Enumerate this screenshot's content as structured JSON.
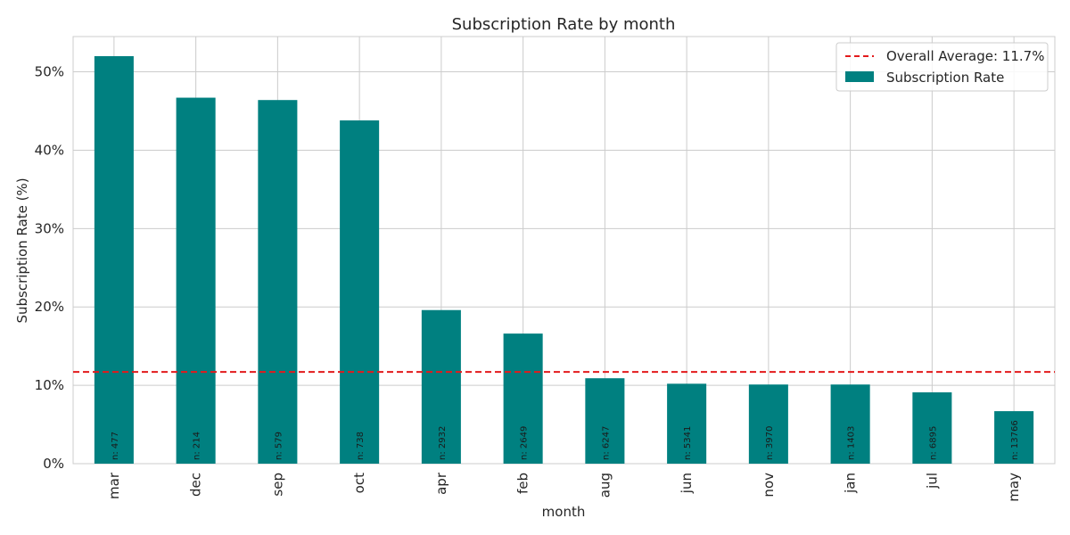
{
  "chart_data": {
    "type": "bar",
    "title": "Subscription Rate by month",
    "xlabel": "month",
    "ylabel": "Subscription Rate (%)",
    "categories": [
      "mar",
      "dec",
      "sep",
      "oct",
      "apr",
      "feb",
      "aug",
      "jun",
      "nov",
      "jan",
      "jul",
      "may"
    ],
    "series": [
      {
        "name": "Subscription Rate",
        "values": [
          52.0,
          46.7,
          46.4,
          43.8,
          19.6,
          16.6,
          10.9,
          10.2,
          10.1,
          10.1,
          9.1,
          6.7
        ],
        "color": "#008080"
      }
    ],
    "counts": [
      "n: 477",
      "n: 214",
      "n: 579",
      "n: 738",
      "n: 2932",
      "n: 2649",
      "n: 6247",
      "n: 5341",
      "n: 3970",
      "n: 1403",
      "n: 6895",
      "n: 13766"
    ],
    "ylim": [
      0,
      54.5
    ],
    "yticks": [
      0,
      10,
      20,
      30,
      40,
      50
    ],
    "ytick_labels": [
      "0%",
      "10%",
      "20%",
      "30%",
      "40%",
      "50%"
    ],
    "average_line": {
      "value": 11.7,
      "label": "Overall Average: 11.7%",
      "color": "#e31a1c",
      "style": "dashed"
    },
    "grid": true,
    "legend_position": "top-right"
  }
}
